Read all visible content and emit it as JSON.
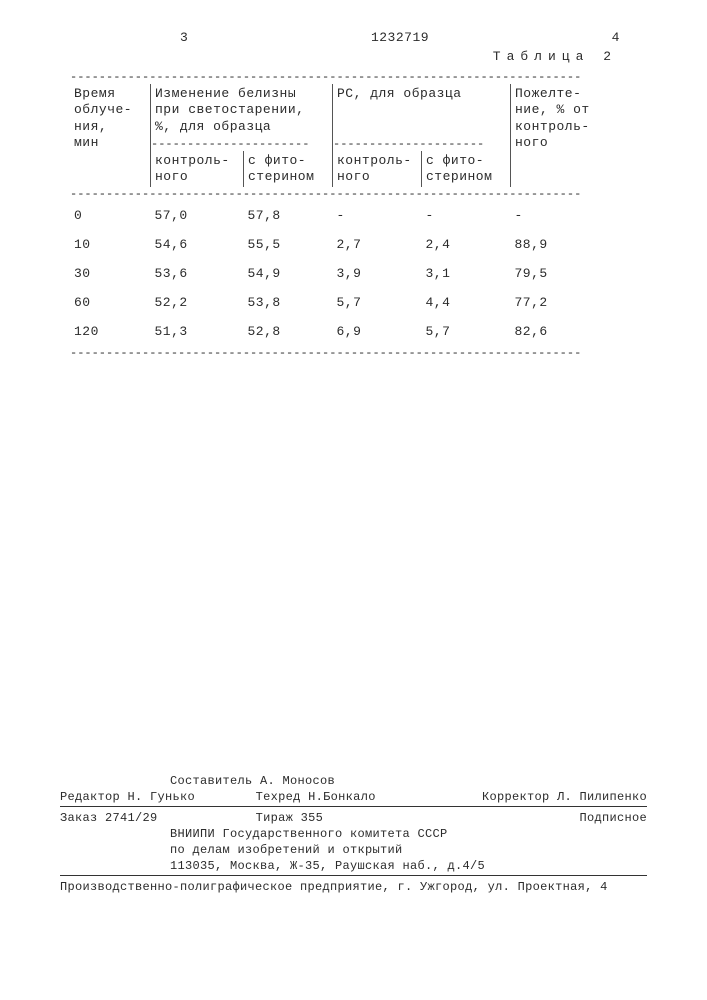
{
  "page_left_num": "3",
  "doc_number": "1232719",
  "page_right_num": "4",
  "table_label": "Таблица 2",
  "headers": {
    "col1": "Время\nоблуче-\nния,\nмин",
    "col23_top": "Изменение белизны\nпри светостарении,\n%, для образца",
    "col2_sub": "контроль-\nного",
    "col3_sub": "с фито-\nстерином",
    "col45_top": "РС, для образца",
    "col4_sub": "контроль-\nного",
    "col5_sub": "с фито-\nстерином",
    "col6": "Пожелте-\nние, % от\nконтроль-\nного"
  },
  "rows": [
    [
      "0",
      "57,0",
      "57,8",
      "-",
      "-",
      "-"
    ],
    [
      "10",
      "54,6",
      "55,5",
      "2,7",
      "2,4",
      "88,9"
    ],
    [
      "30",
      "53,6",
      "54,9",
      "3,9",
      "3,1",
      "79,5"
    ],
    [
      "60",
      "52,2",
      "53,8",
      "5,7",
      "4,4",
      "77,2"
    ],
    [
      "120",
      "51,3",
      "52,8",
      "6,9",
      "5,7",
      "82,6"
    ]
  ],
  "footer": {
    "compiler": "Составитель А. Моносов",
    "editor": "Редактор Н. Гунько",
    "techred": "Техред Н.Бонкало",
    "corrector": "Корректор Л. Пилипенко",
    "order": "Заказ 2741/29",
    "tirage": "Тираж 355",
    "subscript": "Подписное",
    "org1": "ВНИИПИ Государственного комитета СССР",
    "org2": "по делам изобретений и открытий",
    "address": "113035, Москва, Ж-35, Раушская наб., д.4/5",
    "printer": "Производственно-полиграфическое предприятие, г. Ужгород, ул. Проектная, 4"
  }
}
